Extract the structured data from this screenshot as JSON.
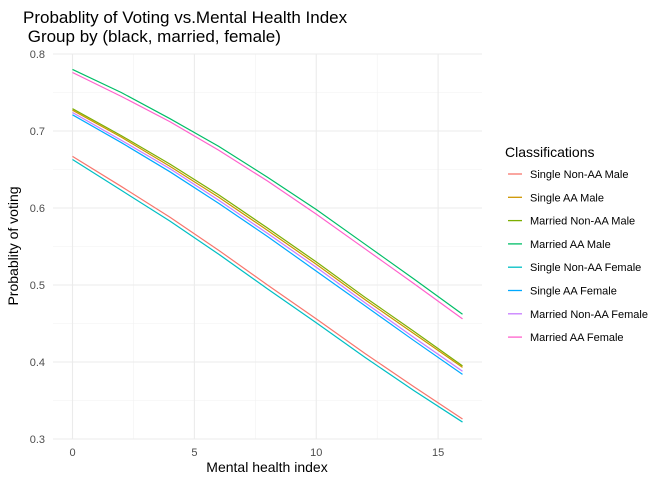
{
  "chart_data": {
    "type": "line",
    "title": "Probablity of Voting vs.Mental Health Index",
    "subtitle": " Group by (black, married, female)",
    "xlabel": "Mental health index",
    "ylabel": "Probablity of voting",
    "xlim": [
      -0.8,
      16.8
    ],
    "ylim": [
      0.3,
      0.8
    ],
    "x_ticks": [
      0,
      5,
      10,
      15
    ],
    "y_ticks": [
      0.3,
      0.4,
      0.5,
      0.6,
      0.7,
      0.8
    ],
    "x_tick_labels": [
      "0",
      "5",
      "10",
      "15"
    ],
    "y_tick_labels": [
      "0.3",
      "0.4",
      "0.5",
      "0.6",
      "0.7",
      "0.8"
    ],
    "x": [
      0,
      2,
      4,
      6,
      8,
      10,
      12,
      14,
      16
    ],
    "grid": true,
    "legend_title": "Classifications",
    "legend_position": "right",
    "series": [
      {
        "name": "Single Non-AA Male",
        "color": "#F8766D",
        "values": [
          0.667,
          0.628,
          0.588,
          0.545,
          0.5,
          0.456,
          0.411,
          0.368,
          0.326
        ]
      },
      {
        "name": "Single AA Male",
        "color": "#CD9600",
        "values": [
          0.727,
          0.692,
          0.654,
          0.614,
          0.571,
          0.527,
          0.481,
          0.437,
          0.393
        ]
      },
      {
        "name": "Married Non-AA Male",
        "color": "#7CAE00",
        "values": [
          0.729,
          0.694,
          0.657,
          0.617,
          0.574,
          0.53,
          0.484,
          0.44,
          0.395
        ]
      },
      {
        "name": "Married AA Male",
        "color": "#00BE67",
        "values": [
          0.78,
          0.75,
          0.716,
          0.68,
          0.64,
          0.598,
          0.553,
          0.508,
          0.462
        ]
      },
      {
        "name": "Single Non-AA Female",
        "color": "#00BFC4",
        "values": [
          0.663,
          0.623,
          0.583,
          0.54,
          0.495,
          0.451,
          0.406,
          0.363,
          0.322
        ]
      },
      {
        "name": "Single AA Female",
        "color": "#00A9FF",
        "values": [
          0.721,
          0.685,
          0.647,
          0.606,
          0.563,
          0.518,
          0.473,
          0.428,
          0.384
        ]
      },
      {
        "name": "Married Non-AA Female",
        "color": "#C77CFF",
        "values": [
          0.724,
          0.688,
          0.651,
          0.61,
          0.567,
          0.523,
          0.477,
          0.432,
          0.388
        ]
      },
      {
        "name": "Married AA Female",
        "color": "#FF61CC",
        "values": [
          0.776,
          0.745,
          0.712,
          0.675,
          0.635,
          0.592,
          0.547,
          0.502,
          0.456
        ]
      }
    ]
  }
}
